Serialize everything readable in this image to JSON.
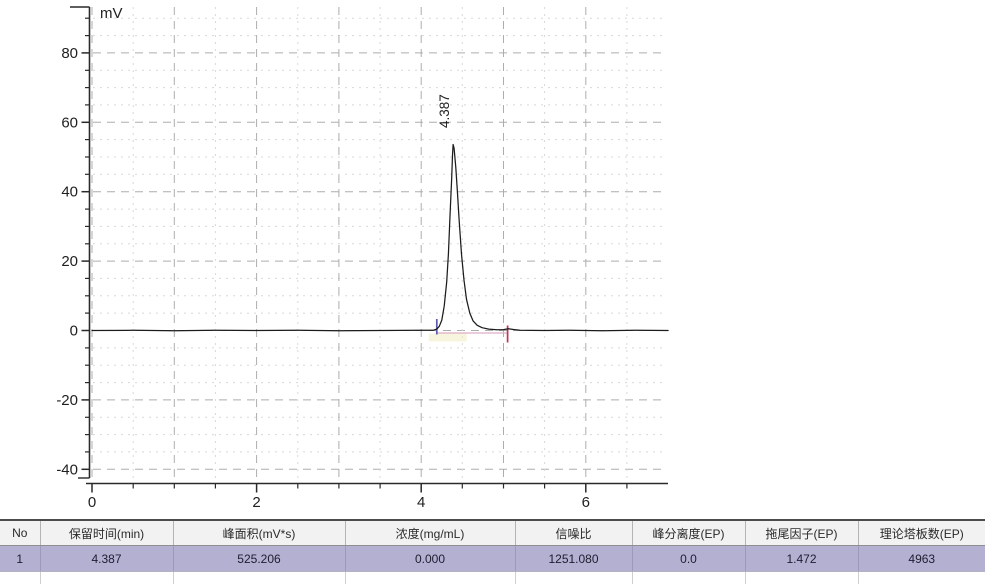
{
  "chart_data": {
    "type": "line",
    "title": "",
    "xlabel": "",
    "ylabel": "mV",
    "xlim": [
      0,
      7
    ],
    "ylim": [
      -42.5,
      93
    ],
    "x_major_ticks": [
      0,
      2,
      4,
      6
    ],
    "x_tick_labels": [
      "0",
      "2",
      "4",
      "6"
    ],
    "x_minor_step": 0.5,
    "y_major_ticks": [
      80,
      60,
      40,
      20,
      0,
      -20,
      -40
    ],
    "y_tick_labels": [
      "80",
      "60",
      "40",
      "20",
      "0",
      "-20",
      "-40"
    ],
    "y_minor_step": 5,
    "grid": true,
    "legend": false,
    "colors": {
      "axis": "#2a2a2a",
      "grid_minor": "#d8d8d8",
      "grid_major": "#adadad",
      "curve": "#1c1c1c"
    },
    "series": [
      {
        "name": "chromatogram-signal",
        "color": "#1c1c1c",
        "points": [
          [
            0,
            0
          ],
          [
            0.5,
            0.05
          ],
          [
            1,
            -0.05
          ],
          [
            1.5,
            0.05
          ],
          [
            2,
            0
          ],
          [
            2.5,
            0.05
          ],
          [
            3,
            -0.05
          ],
          [
            3.5,
            0
          ],
          [
            4,
            0.05
          ],
          [
            4.15,
            0.1
          ],
          [
            4.19,
            0.4
          ],
          [
            4.22,
            1.2
          ],
          [
            4.25,
            3
          ],
          [
            4.28,
            7
          ],
          [
            4.31,
            14
          ],
          [
            4.33,
            22
          ],
          [
            4.35,
            33
          ],
          [
            4.37,
            44
          ],
          [
            4.38,
            50.5
          ],
          [
            4.387,
            53.6
          ],
          [
            4.4,
            52.5
          ],
          [
            4.42,
            47
          ],
          [
            4.44,
            40
          ],
          [
            4.46,
            32
          ],
          [
            4.49,
            22
          ],
          [
            4.52,
            14.5
          ],
          [
            4.55,
            9
          ],
          [
            4.59,
            5
          ],
          [
            4.63,
            2.8
          ],
          [
            4.68,
            1.5
          ],
          [
            4.74,
            0.8
          ],
          [
            4.82,
            0.4
          ],
          [
            4.92,
            0.2
          ],
          [
            5,
            0.25
          ],
          [
            5.06,
            0.5
          ],
          [
            5.12,
            0.3
          ],
          [
            5.2,
            0.05
          ],
          [
            5.5,
            0
          ],
          [
            5.8,
            0.05
          ],
          [
            6.2,
            -0.05
          ],
          [
            6.6,
            0.05
          ],
          [
            7,
            0
          ]
        ]
      }
    ],
    "peaks": [
      {
        "label": "4.387",
        "retention_time_min": 4.387,
        "height_mv": 53.6,
        "start_time_min": 4.19,
        "end_time_min": 5.05,
        "start_marker_color": "#5a5ab0",
        "end_marker_color": "#c23555",
        "baseline_color": "#dfaec6",
        "integration_tint": "#f3edc4"
      }
    ]
  },
  "table": {
    "headers": [
      "No",
      "保留时间(min)",
      "峰面积(mV*s)",
      "浓度(mg/mL)",
      "信噪比",
      "峰分离度(EP)",
      "拖尾因子(EP)",
      "理论塔板数(EP)"
    ],
    "rows": [
      [
        "1",
        "4.387",
        "525.206",
        "0.000",
        "1251.080",
        "0.0",
        "1.472",
        "4963"
      ]
    ]
  }
}
